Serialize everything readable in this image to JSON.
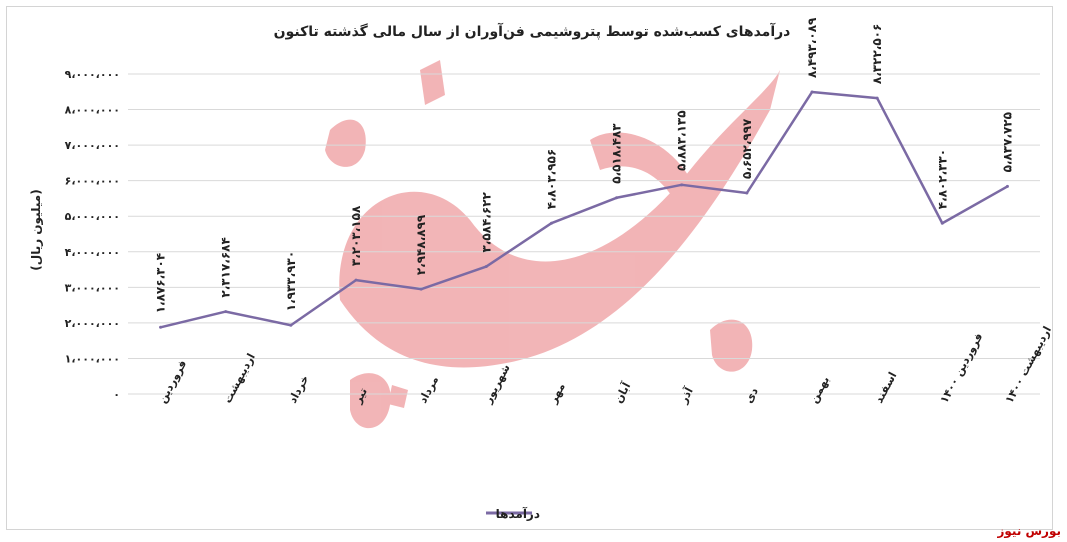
{
  "chart_data": {
    "type": "line",
    "title": "درآمدهای کسب‌شده توسط پتروشیمی فن‌آوران از سال مالی گذشته تاکنون",
    "ylabel": "(میلیون ریال)",
    "xlabel": "",
    "ylim": [
      0,
      9000000
    ],
    "yticks": [
      0,
      1000000,
      2000000,
      3000000,
      4000000,
      5000000,
      6000000,
      7000000,
      8000000,
      9000000
    ],
    "ytick_labels": [
      "۰",
      "۱،۰۰۰،۰۰۰",
      "۲،۰۰۰،۰۰۰",
      "۳،۰۰۰،۰۰۰",
      "۴،۰۰۰،۰۰۰",
      "۵،۰۰۰،۰۰۰",
      "۶،۰۰۰،۰۰۰",
      "۷،۰۰۰،۰۰۰",
      "۸،۰۰۰،۰۰۰",
      "۹،۰۰۰،۰۰۰"
    ],
    "grid": true,
    "legend_position": "bottom",
    "categories": [
      "فروردین",
      "اردیبهشت",
      "خرداد",
      "تیر",
      "مرداد",
      "شهریور",
      "مهر",
      "آبان",
      "آذر",
      "دی",
      "بهمن",
      "اسفند",
      "فروردین ۱۴۰۰",
      "اردیبهشت ۱۴۰۰"
    ],
    "series": [
      {
        "name": "درآمدها",
        "color": "#7b6aa4",
        "values": [
          1876304,
          2317684,
          1933930,
          3203158,
          2948899,
          3584622,
          4803956,
          5518483,
          5883135,
          5652997,
          8493089,
          8322506,
          4802330,
          5837725
        ],
        "data_labels": [
          "۱،۸۷۶،۳۰۴",
          "۲،۳۱۷،۶۸۴",
          "۱،۹۳۳،۹۳۰",
          "۳،۲۰۳،۱۵۸",
          "۲،۹۴۸،۸۹۹",
          "۳،۵۸۴،۶۲۲",
          "۴،۸۰۳،۹۵۶",
          "۵،۵۱۸،۴۸۳",
          "۵،۸۸۳،۱۳۵",
          "۵،۶۵۲،۹۹۷",
          "۸،۴۹۳،۰۸۹",
          "۸،۳۲۲،۵۰۶",
          "۴،۸۰۲،۳۳۰",
          "۵،۸۳۷،۷۲۵"
        ]
      }
    ]
  },
  "watermark": {
    "text": "بورس نیوز",
    "color": "#e8787c"
  },
  "source_label": "بورس نیوز"
}
